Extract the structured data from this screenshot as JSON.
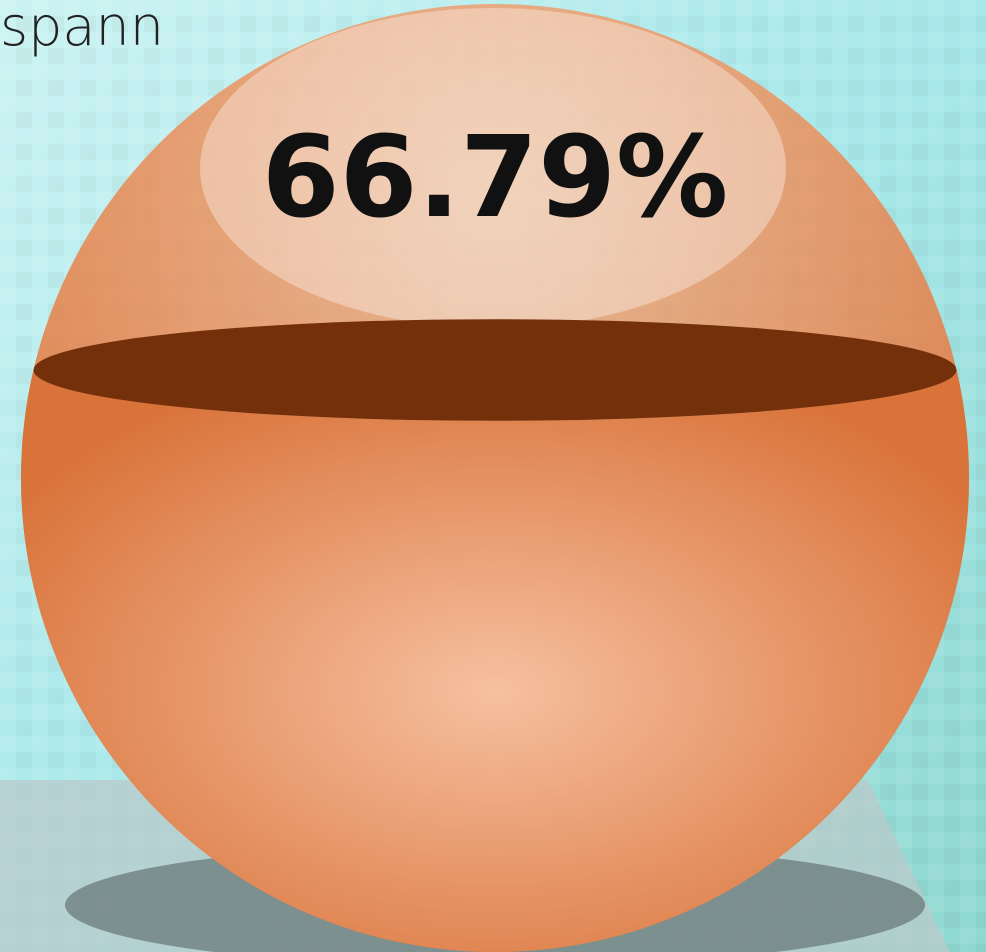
{
  "chart_data": {
    "type": "gauge",
    "title": "spann",
    "values": [
      66.79
    ],
    "value_labels": [
      "66.79%"
    ],
    "color": "#e07a3f"
  }
}
